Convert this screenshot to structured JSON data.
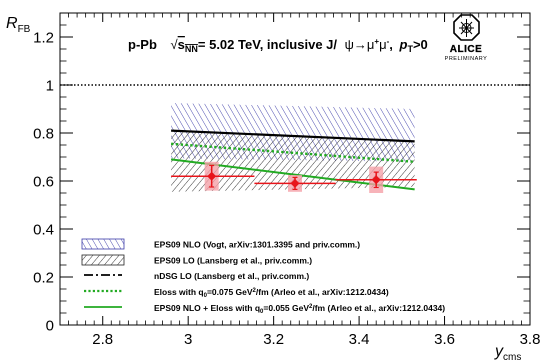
{
  "chart_data": {
    "type": "scatter",
    "title_parts": {
      "system": "p-Pb",
      "sqrt": "√",
      "s": "s",
      "nn": "NN",
      "energy": "= 5.02 TeV, inclusive J/",
      "psi": "ψ→μ",
      "plus": "+",
      "mu": "μ",
      "minus": "-",
      "comma": ",",
      "p": "p",
      "t": "T",
      "cut": ">0"
    },
    "ylabel_main": "R",
    "ylabel_sub": "FB",
    "xlabel_main": "y",
    "xlabel_sub": "cms",
    "xlim": [
      2.7,
      3.8
    ],
    "ylim": [
      0,
      1.3
    ],
    "x_ticks": [
      2.8,
      3.0,
      3.2,
      3.4,
      3.6,
      3.8
    ],
    "x_tick_labels": [
      "2.8",
      "3",
      "3.2",
      "3.4",
      "3.6",
      "3.8"
    ],
    "y_ticks": [
      0,
      0.2,
      0.4,
      0.6,
      0.8,
      1.0,
      1.2
    ],
    "y_tick_labels": [
      "0",
      "0.2",
      "0.4",
      "0.6",
      "0.8",
      "1",
      "1.2"
    ],
    "reference_line": 1.0,
    "data_points": [
      {
        "x": 3.055,
        "y": 0.62,
        "x_low": 2.96,
        "x_high": 3.155,
        "stat": 0.045,
        "sys": 0.06
      },
      {
        "x": 3.25,
        "y": 0.59,
        "x_low": 3.155,
        "x_high": 3.345,
        "stat": 0.025,
        "sys": 0.035
      },
      {
        "x": 3.44,
        "y": 0.605,
        "x_low": 3.345,
        "x_high": 3.535,
        "stat": 0.032,
        "sys": 0.055
      }
    ],
    "bands": [
      {
        "name": "EPS09 NLO (Vogt, arXiv:1301.3395 and priv.comm.)",
        "color": "#3333aa",
        "x": [
          2.96,
          3.53
        ],
        "upper": [
          0.925,
          0.9
        ],
        "lower": [
          0.695,
          0.68
        ],
        "hatch": "diag-right"
      },
      {
        "name": "EPS09 LO (Lansberg et al., priv.comm.)",
        "color": "#222222",
        "x": [
          2.96,
          3.53
        ],
        "upper": [
          0.805,
          0.765
        ],
        "lower": [
          0.555,
          0.575
        ],
        "hatch": "diag-left"
      }
    ],
    "lines": [
      {
        "name": "nDSG LO (Lansberg et al., priv.comm.)",
        "color": "#000000",
        "style": "dashdot",
        "x": [
          2.96,
          3.53
        ],
        "y": [
          0.81,
          0.765
        ]
      },
      {
        "name_parts": [
          "Eloss with q",
          "0",
          "=0.075 GeV",
          "2",
          "/fm (Arleo et al., arXiv:1212.0434)"
        ],
        "color": "#22aa22",
        "style": "dotted",
        "x": [
          2.96,
          3.53
        ],
        "y": [
          0.755,
          0.68
        ]
      },
      {
        "name_parts": [
          "EPS09 NLO + Eloss with q",
          "0",
          "=0.055 GeV",
          "2",
          "/fm (Arleo et al., arXiv:1212.0434)"
        ],
        "color": "#22aa22",
        "style": "solid",
        "x": [
          2.96,
          3.53
        ],
        "y": [
          0.69,
          0.565
        ]
      }
    ],
    "data_color": "#e8141a",
    "sys_box_color": "#f5a0a8",
    "logo": {
      "name": "ALICE",
      "sub": "PRELIMINARY"
    }
  }
}
